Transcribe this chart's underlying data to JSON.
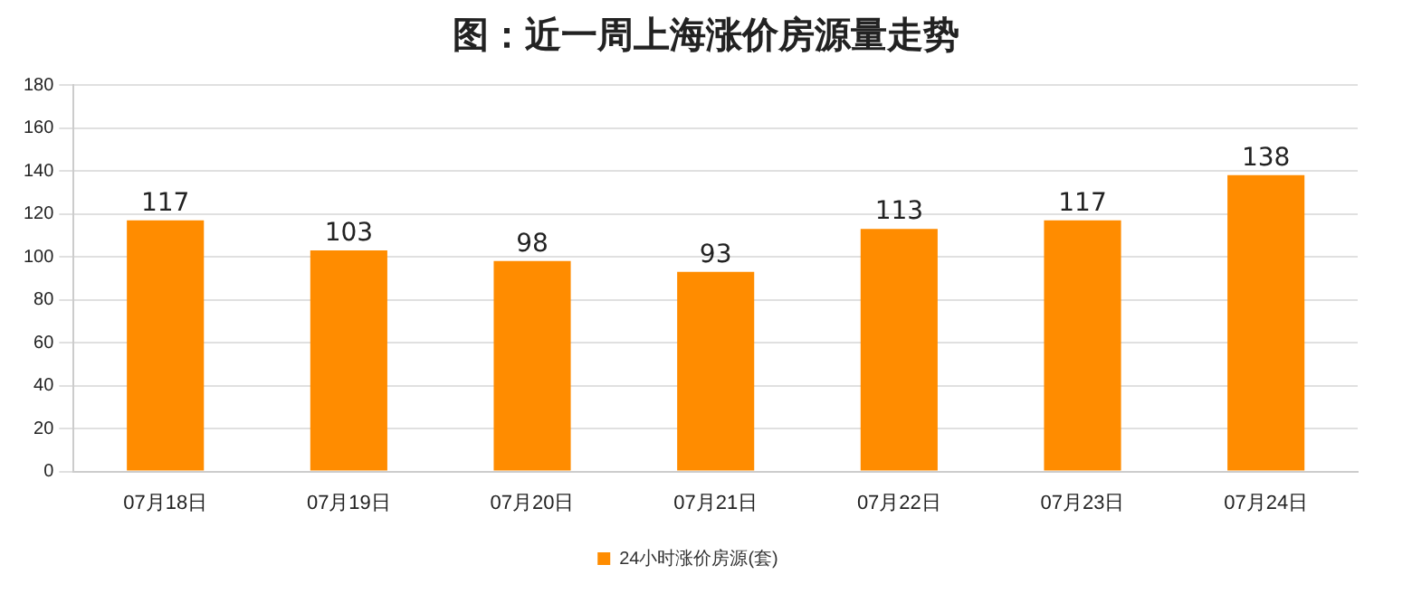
{
  "chart_data": {
    "type": "bar",
    "title": "图：近一周上海涨价房源量走势",
    "categories": [
      "07月18日",
      "07月19日",
      "07月20日",
      "07月21日",
      "07月22日",
      "07月23日",
      "07月24日"
    ],
    "series": [
      {
        "name": "24小时涨价房源(套)",
        "color": "#ff8c00",
        "values": [
          117,
          103,
          98,
          93,
          113,
          117,
          138
        ]
      }
    ],
    "ylim": [
      0,
      180
    ],
    "yticks": [
      0,
      20,
      40,
      60,
      80,
      100,
      120,
      140,
      160,
      180
    ],
    "grid": "y",
    "legend": "bottom",
    "data_labels": true
  }
}
